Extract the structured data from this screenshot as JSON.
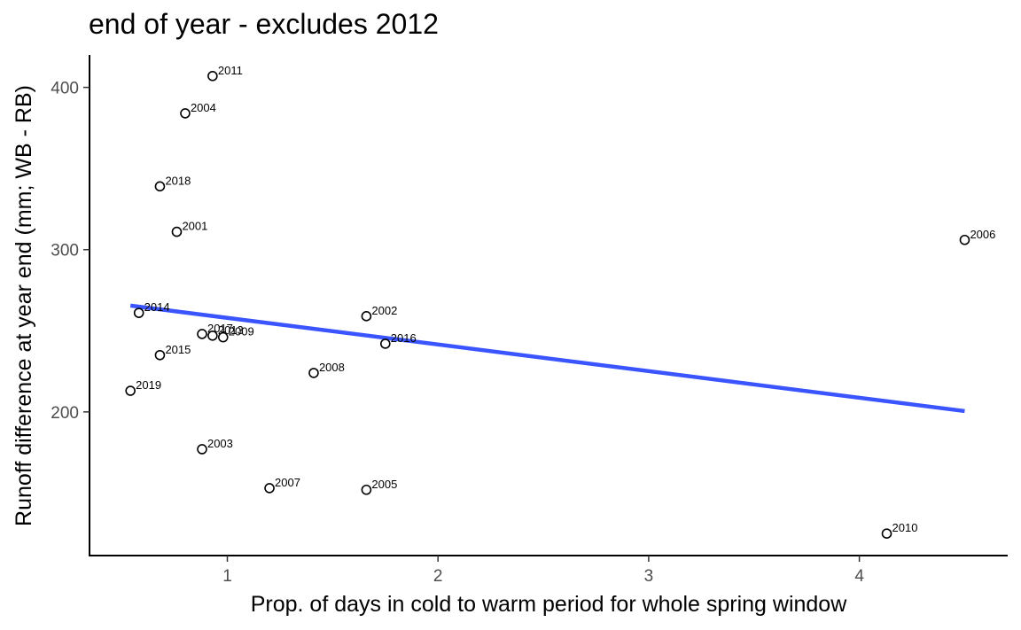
{
  "chart_data": {
    "type": "scatter",
    "title": "end of year - excludes 2012",
    "xlabel": "Prop. of days in cold to warm period for whole spring window",
    "ylabel": "Runoff difference at year end (mm; WB - RB)",
    "xlim": [
      0.35,
      4.7
    ],
    "ylim": [
      112,
      420
    ],
    "xticks": [
      1,
      2,
      3,
      4
    ],
    "yticks": [
      200,
      300,
      400
    ],
    "grid": false,
    "points": [
      {
        "label": "2011",
        "x": 0.93,
        "y": 407
      },
      {
        "label": "2004",
        "x": 0.8,
        "y": 384
      },
      {
        "label": "2018",
        "x": 0.68,
        "y": 339
      },
      {
        "label": "2001",
        "x": 0.76,
        "y": 311
      },
      {
        "label": "2006",
        "x": 4.5,
        "y": 306
      },
      {
        "label": "2014",
        "x": 0.58,
        "y": 261
      },
      {
        "label": "2002",
        "x": 1.66,
        "y": 259
      },
      {
        "label": "2017",
        "x": 0.88,
        "y": 248
      },
      {
        "label": "2013",
        "x": 0.93,
        "y": 247
      },
      {
        "label": "2009",
        "x": 0.98,
        "y": 246
      },
      {
        "label": "2016",
        "x": 1.75,
        "y": 242
      },
      {
        "label": "2015",
        "x": 0.68,
        "y": 235
      },
      {
        "label": "2008",
        "x": 1.41,
        "y": 224
      },
      {
        "label": "2019",
        "x": 0.54,
        "y": 213
      },
      {
        "label": "2003",
        "x": 0.88,
        "y": 177
      },
      {
        "label": "2007",
        "x": 1.2,
        "y": 153
      },
      {
        "label": "2005",
        "x": 1.66,
        "y": 152
      },
      {
        "label": "2010",
        "x": 4.13,
        "y": 125
      }
    ],
    "trendline": {
      "x": [
        0.54,
        4.5
      ],
      "y": [
        265.5,
        200.5
      ],
      "color": "#3a54ff"
    }
  }
}
